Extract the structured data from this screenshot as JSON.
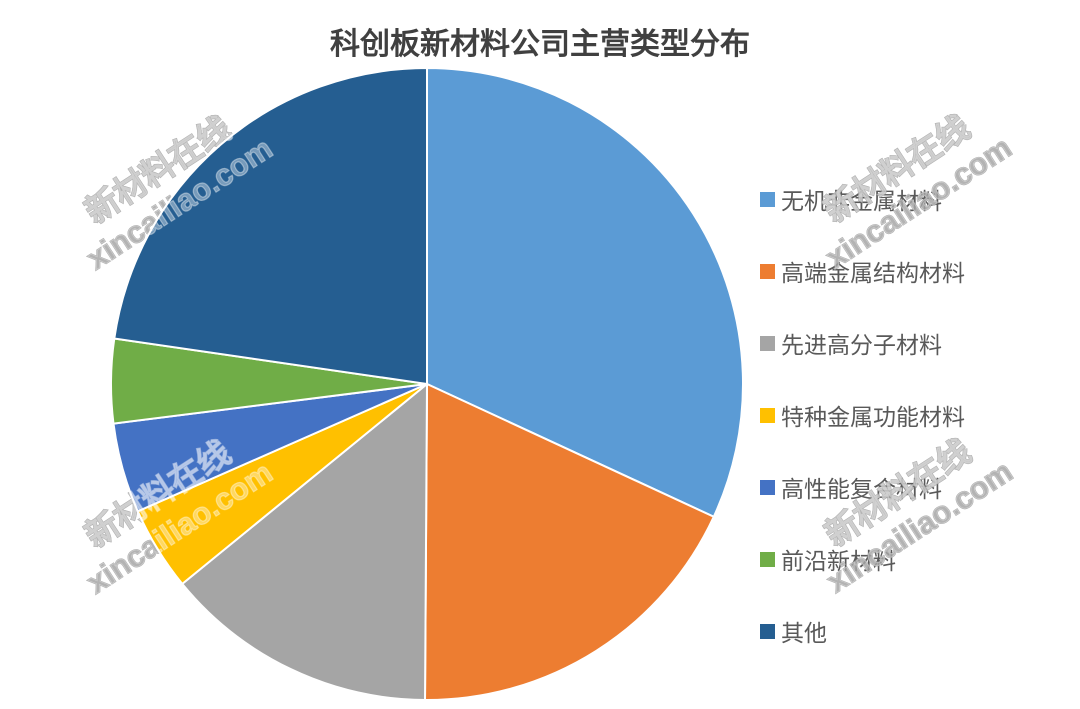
{
  "title": "科创板新材料公司主营类型分布",
  "title_color": "#404040",
  "chart_data": {
    "type": "pie",
    "title": "科创板新材料公司主营类型分布",
    "legend_position": "right",
    "categories": [
      "无机非金属材料",
      "高端金属结构材料",
      "先进高分子材料",
      "特种金属功能材料",
      "高性能复合材料",
      "前沿新材料",
      "其他"
    ],
    "values": [
      31.9,
      18.2,
      14.0,
      4.3,
      4.6,
      4.3,
      22.7
    ],
    "colors": [
      "#5B9BD5",
      "#ED7D31",
      "#A5A5A5",
      "#FFC000",
      "#4472C4",
      "#70AD47",
      "#255E91"
    ]
  },
  "legend_text_color": "#595959",
  "watermark": {
    "line1": "新材料在线",
    "line2": "xincailiao.com",
    "under_color": "#858585",
    "over_color": "rgba(255,255,255,0.38)"
  }
}
